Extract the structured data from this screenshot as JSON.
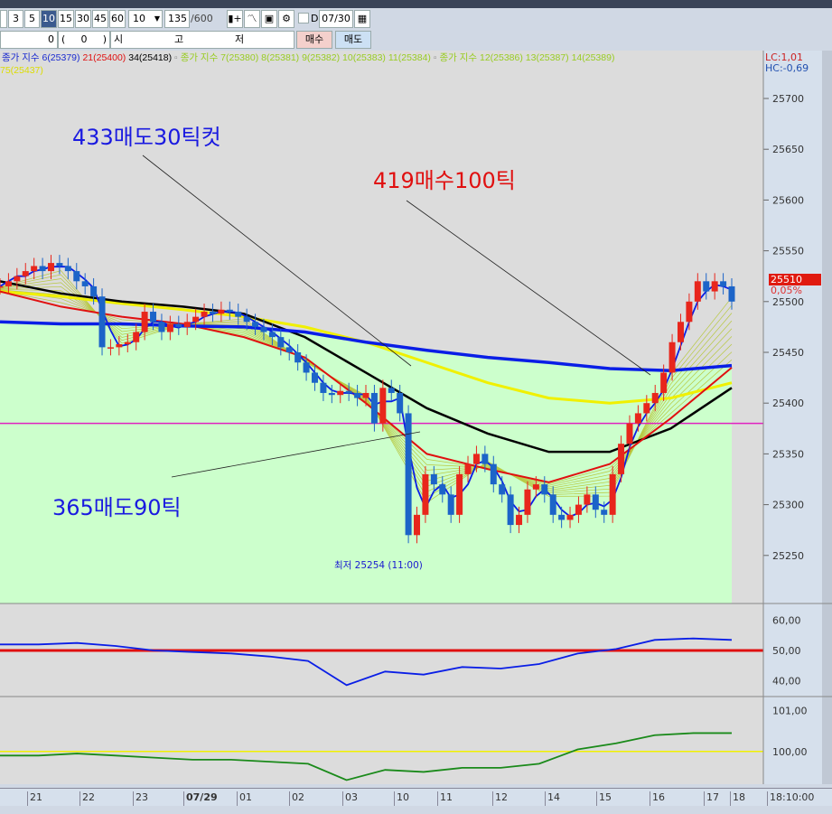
{
  "toolbar": {
    "periods": [
      "3",
      "5",
      "10",
      "15",
      "30",
      "45",
      "60"
    ],
    "selected_period": "10",
    "interval_select": "10",
    "count_value": "135",
    "count_total": "/600",
    "date_checkbox_label": "D",
    "date_value": "07/30"
  },
  "order_row": {
    "qty": "0",
    "paren_open": "(",
    "paren_value": "0",
    "paren_close": ")",
    "open_label": "시",
    "high_label": "고",
    "low_label": "저",
    "buy_label": "매수",
    "sell_label": "매도"
  },
  "legend": {
    "g1_label": "종가 지수 6(25379)",
    "g1_b": "21(25400)",
    "g1_c": "34(25418)",
    "g2_label": "종가 지수 7(25380)",
    "g2_b": "8(25381)",
    "g2_c": "9(25382)",
    "g2_d": "10(25383)",
    "g2_e": "11(25384)",
    "g3_label": "종가 지수 12(25386)",
    "g3_b": "13(25387)",
    "g3_c": "14(25389)",
    "line2": "75(25437)",
    "lc": "LC:1,01",
    "hc": "HC:-0,69"
  },
  "price_box": {
    "price": "25510",
    "change": "0,05%"
  },
  "annotations": {
    "a1": "433매도30틱컷",
    "a2": "419매수100틱",
    "a3": "365매도90틱",
    "low_label": "최저 25254 (11:00)"
  },
  "colors": {
    "up": "#e8261c",
    "down": "#1c64c8",
    "ma6": "#0a1ee6",
    "ma21": "#e01010",
    "ma34": "#000000",
    "ma75": "#0a1ee6",
    "yellow": "#f0f000",
    "ref": "#e020c0",
    "green_bg": "#ccffcc"
  },
  "chart_data": [
    {
      "type": "candlestick",
      "yticks": [
        25700,
        25650,
        25600,
        25550,
        25500,
        25450,
        25400,
        25350,
        25300,
        25250
      ],
      "ylim": [
        25200,
        25740
      ],
      "reference_line": 25380,
      "closes": [
        25515,
        25520,
        25525,
        25530,
        25535,
        25530,
        25538,
        25535,
        25530,
        25520,
        25515,
        25505,
        25455,
        25455,
        25458,
        25460,
        25470,
        25490,
        25480,
        25470,
        25478,
        25475,
        25480,
        25485,
        25490,
        25488,
        25492,
        25490,
        25485,
        25480,
        25475,
        25470,
        25465,
        25455,
        25450,
        25440,
        25430,
        25420,
        25410,
        25408,
        25412,
        25410,
        25405,
        25410,
        25380,
        25415,
        25410,
        25390,
        25270,
        25290,
        25330,
        25320,
        25310,
        25290,
        25330,
        25340,
        25350,
        25340,
        25320,
        25310,
        25280,
        25290,
        25315,
        25320,
        25310,
        25290,
        25285,
        25290,
        25300,
        25310,
        25295,
        25290,
        25330,
        25360,
        25380,
        25390,
        25400,
        25410,
        25430,
        25460,
        25480,
        25500,
        25520,
        25510,
        25520,
        25515,
        25500
      ],
      "ma75": [
        25480,
        25478,
        25478,
        25476,
        25475,
        25470,
        25460,
        25452,
        25445,
        25440,
        25434,
        25432,
        25437
      ],
      "ma_yellow": [
        25510,
        25505,
        25498,
        25492,
        25485,
        25475,
        25460,
        25440,
        25420,
        25405,
        25400,
        25405,
        25420
      ],
      "ma34": [
        25520,
        25508,
        25500,
        25495,
        25488,
        25465,
        25430,
        25395,
        25370,
        25352,
        25352,
        25375,
        25415
      ],
      "ma21": [
        25510,
        25495,
        25485,
        25478,
        25465,
        25445,
        25400,
        25350,
        25335,
        25322,
        25340,
        25385,
        25435
      ]
    },
    {
      "type": "line",
      "yticks": [
        "60,00",
        "50,00",
        "40,00"
      ],
      "ylim": [
        35,
        65
      ],
      "reference": 50,
      "values": [
        52,
        52,
        52.5,
        51.5,
        50,
        49.5,
        49,
        48,
        46.5,
        38.5,
        43,
        42,
        44.5,
        44,
        45.5,
        49,
        50.5,
        53.5,
        54,
        53.5
      ]
    },
    {
      "type": "line",
      "yticks": [
        "101,00",
        "100,00"
      ],
      "ylim": [
        99.2,
        101.3
      ],
      "reference": 100,
      "values": [
        99.9,
        99.9,
        99.95,
        99.9,
        99.85,
        99.8,
        99.8,
        99.75,
        99.7,
        99.3,
        99.55,
        99.5,
        99.6,
        99.6,
        99.7,
        100.05,
        100.2,
        100.4,
        100.45,
        100.45
      ]
    }
  ],
  "x_axis": {
    "labels": [
      "21",
      "22",
      "23",
      "07/29",
      "01",
      "02",
      "03",
      "10",
      "11",
      "12",
      "14",
      "15",
      "16",
      "17",
      "18"
    ],
    "time": "18:10:00"
  }
}
